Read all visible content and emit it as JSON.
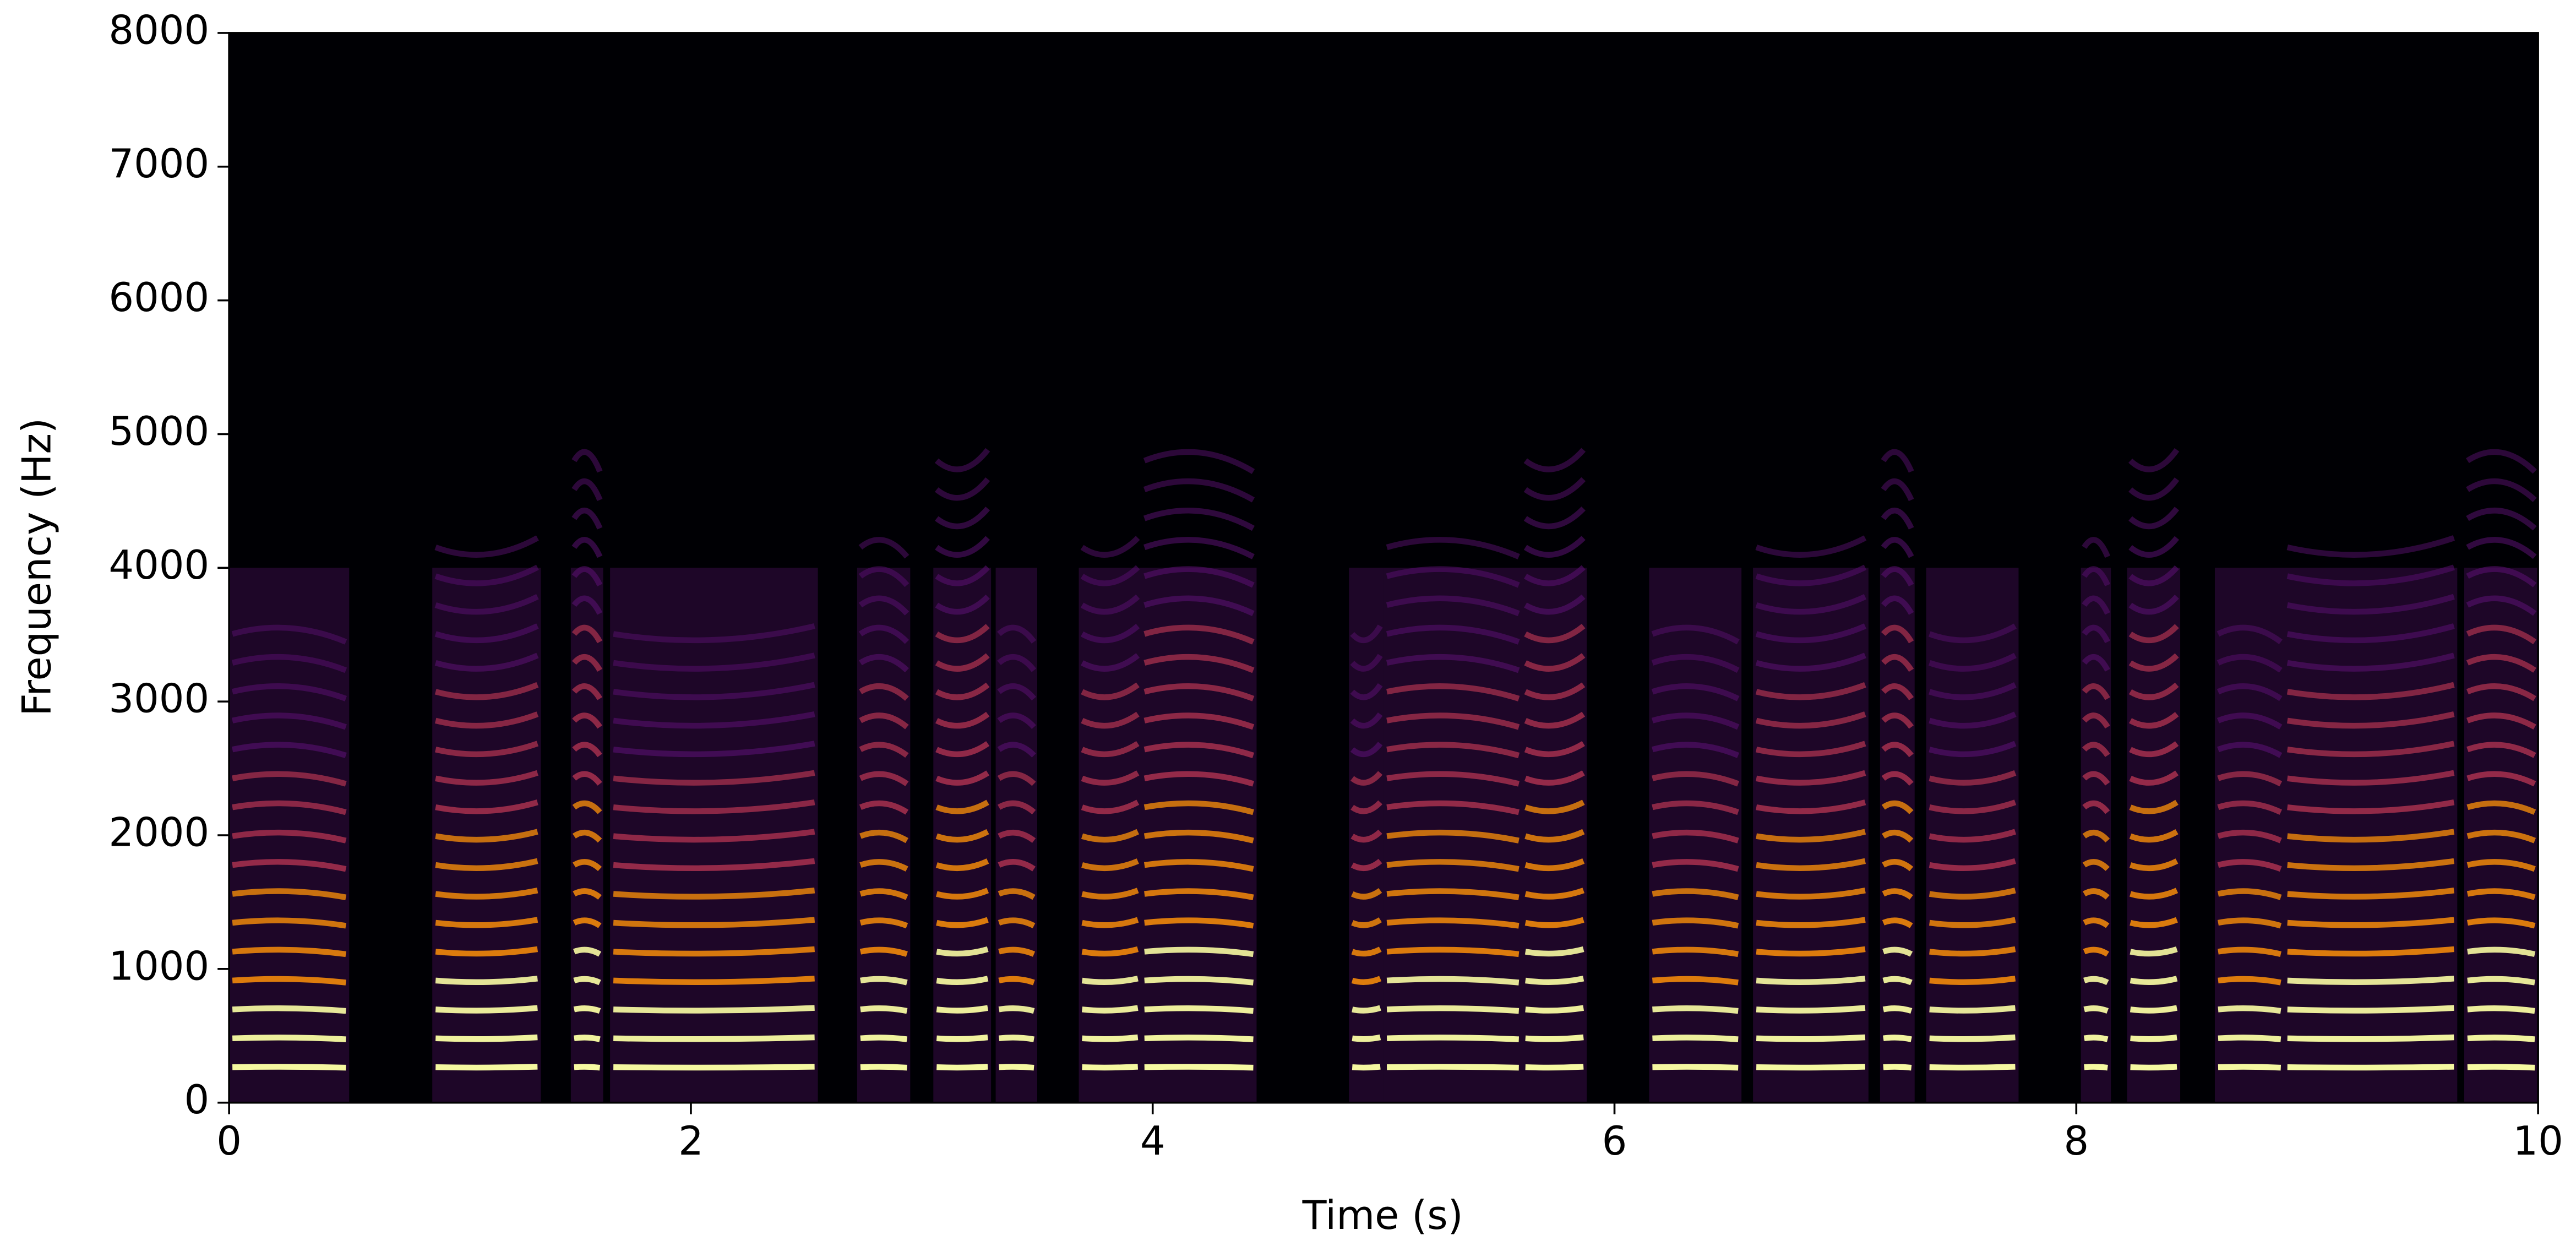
{
  "chart_data": {
    "type": "spectrogram",
    "x_label": "Time (s)",
    "y_label": "Frequency (Hz)",
    "xlim": [
      0,
      10
    ],
    "ylim": [
      0,
      8000
    ],
    "xticks": [
      0,
      2,
      4,
      6,
      8,
      10
    ],
    "yticks": [
      0,
      1000,
      2000,
      3000,
      4000,
      5000,
      6000,
      7000,
      8000
    ],
    "colormap": [
      "#000004",
      "#57106e",
      "#bc3754",
      "#f98e09",
      "#fcffa4"
    ],
    "segments": [
      [
        0,
        0.52
      ],
      [
        0.88,
        1.35
      ],
      [
        1.48,
        1.62
      ],
      [
        1.65,
        2.55
      ],
      [
        2.72,
        2.95
      ],
      [
        3.05,
        3.3
      ],
      [
        3.32,
        3.5
      ],
      [
        3.68,
        3.95
      ],
      [
        3.95,
        4.45
      ],
      [
        4.85,
        5.0
      ],
      [
        5.0,
        5.6
      ],
      [
        5.6,
        5.88
      ],
      [
        6.15,
        6.55
      ],
      [
        6.6,
        7.1
      ],
      [
        7.15,
        7.3
      ],
      [
        7.35,
        7.75
      ],
      [
        8.02,
        8.15
      ],
      [
        8.22,
        8.45
      ],
      [
        8.6,
        8.9
      ],
      [
        8.9,
        9.65
      ],
      [
        9.68,
        10
      ]
    ]
  }
}
